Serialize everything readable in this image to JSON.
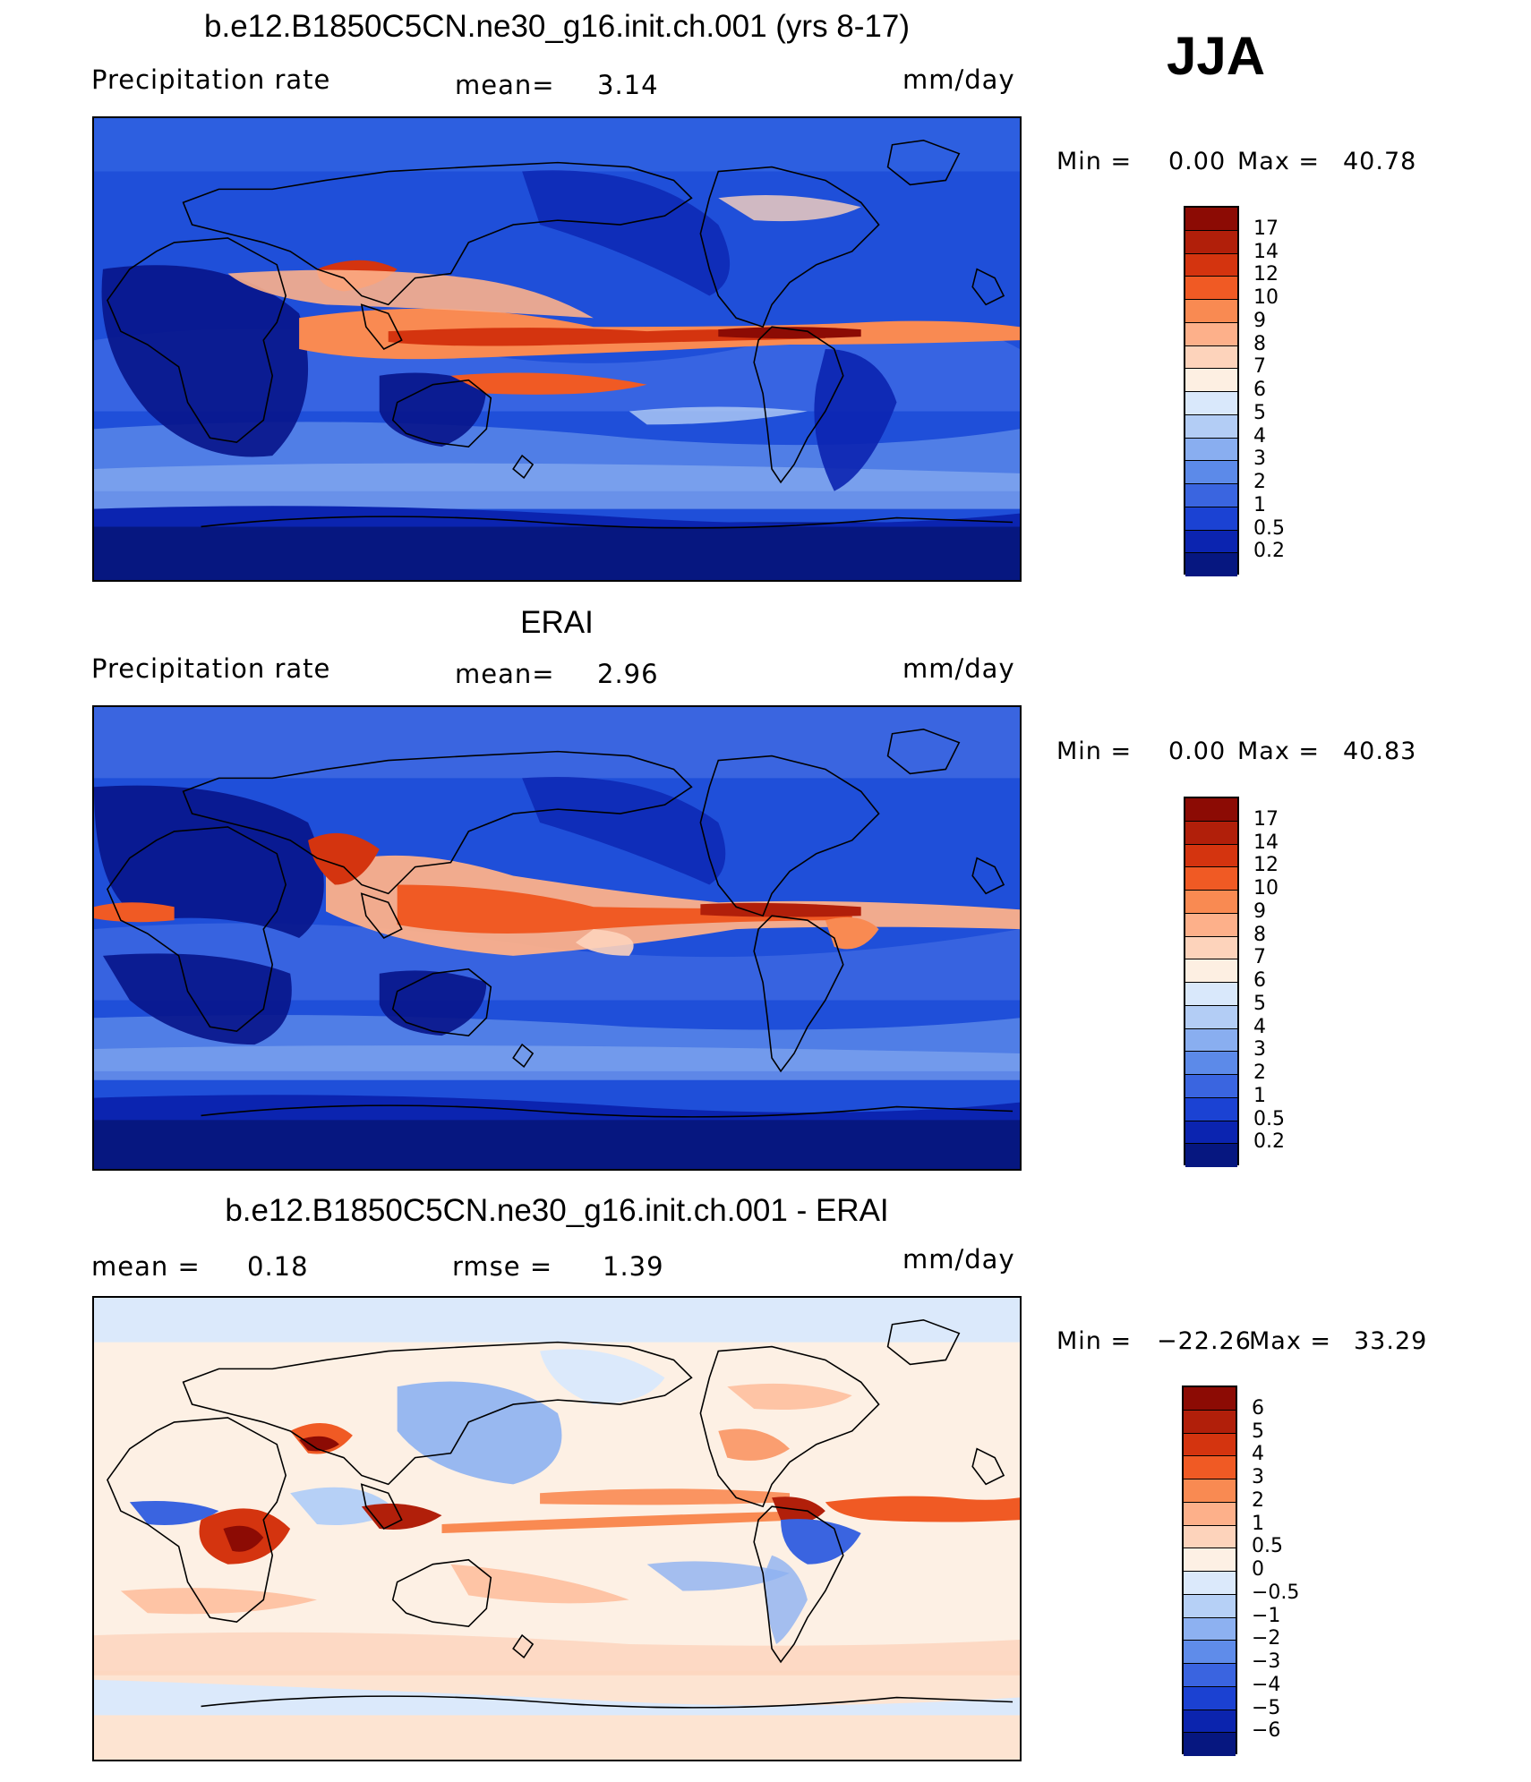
{
  "season": "JJA",
  "panels": [
    {
      "id": "model",
      "title": "b.e12.B1850C5CN.ne30_g16.init.ch.001 (yrs 8-17)",
      "left_label": "Precipitation rate",
      "center_label": "mean=",
      "center_value": "3.14",
      "units": "mm/day",
      "min_label": "Min =",
      "min_value": "0.00",
      "max_label": "Max =",
      "max_value": "40.78",
      "colorbar": {
        "labels": [
          "17",
          "14",
          "12",
          "10",
          "9",
          "8",
          "7",
          "6",
          "5",
          "4",
          "3",
          "2",
          "1",
          "0.5",
          "0.2"
        ],
        "colors": [
          "#8c0b04",
          "#b11f0a",
          "#d4340f",
          "#f05a24",
          "#f98a52",
          "#fdb08a",
          "#fdd3bb",
          "#fdefe2",
          "#d9e8fb",
          "#b3cdf5",
          "#89aef0",
          "#5c8ae9",
          "#3a65e0",
          "#1b42d3",
          "#0b24b0",
          "#061780"
        ]
      },
      "legend_colors": {
        "land_dry": "#07148a",
        "ocean_dry": "#1f4fd9",
        "moderate": "#6e9bee",
        "wet": "#f37a4a",
        "very_wet": "#b31b0a"
      }
    },
    {
      "id": "obs",
      "title": "ERAI",
      "left_label": "Precipitation rate",
      "center_label": "mean=",
      "center_value": "2.96",
      "units": "mm/day",
      "min_label": "Min =",
      "min_value": "0.00",
      "max_label": "Max =",
      "max_value": "40.83",
      "colorbar": {
        "labels": [
          "17",
          "14",
          "12",
          "10",
          "9",
          "8",
          "7",
          "6",
          "5",
          "4",
          "3",
          "2",
          "1",
          "0.5",
          "0.2"
        ],
        "colors": [
          "#8c0b04",
          "#b11f0a",
          "#d4340f",
          "#f05a24",
          "#f98a52",
          "#fdb08a",
          "#fdd3bb",
          "#fdefe2",
          "#d9e8fb",
          "#b3cdf5",
          "#89aef0",
          "#5c8ae9",
          "#3a65e0",
          "#1b42d3",
          "#0b24b0",
          "#061780"
        ]
      },
      "legend_colors": {
        "land_dry": "#07148a",
        "ocean_dry": "#1f4fd9",
        "moderate": "#6e9bee",
        "wet": "#f37a4a",
        "very_wet": "#b31b0a"
      }
    },
    {
      "id": "diff",
      "title": "b.e12.B1850C5CN.ne30_g16.init.ch.001 - ERAI",
      "left_label": "mean =",
      "left_value": "0.18",
      "center_label": "rmse =",
      "center_value": "1.39",
      "units": "mm/day",
      "min_label": "Min =",
      "min_value": "−22.26",
      "max_label": "Max =",
      "max_value": "33.29",
      "colorbar": {
        "labels": [
          "6",
          "5",
          "4",
          "3",
          "2",
          "1",
          "0.5",
          "0",
          "−0.5",
          "−1",
          "−2",
          "−3",
          "−4",
          "−5",
          "−6"
        ],
        "colors": [
          "#8c0b04",
          "#b11f0a",
          "#d4340f",
          "#f05a24",
          "#f98a52",
          "#fdb08a",
          "#fdd3bb",
          "#fdf0e4",
          "#dbe9fb",
          "#b6d0f6",
          "#8db1f1",
          "#5f8cea",
          "#3a64e0",
          "#1b41d2",
          "#0b24ae",
          "#061780"
        ]
      },
      "legend_colors": {
        "land_dry": "#fde4d2",
        "ocean_dry": "#d9e8fb",
        "moderate": "#8db1f1",
        "wet": "#f37a4a",
        "very_wet": "#b31b0a"
      }
    }
  ]
}
